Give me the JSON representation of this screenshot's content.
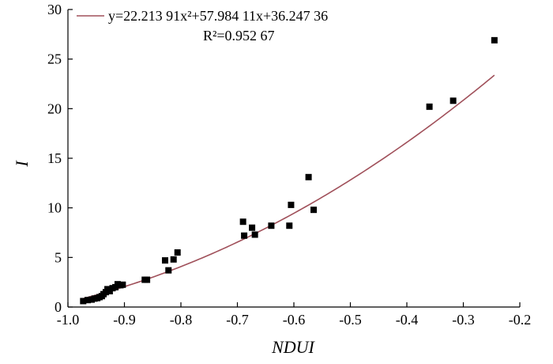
{
  "chart_data": {
    "type": "scatter",
    "xlabel": "NDUI",
    "ylabel": "I",
    "xlim": [
      -1.0,
      -0.2
    ],
    "ylim": [
      0,
      30
    ],
    "xticks": [
      -1.0,
      -0.9,
      -0.8,
      -0.7,
      -0.6,
      -0.5,
      -0.4,
      -0.3,
      -0.2
    ],
    "xtick_labels": [
      "-1.0",
      "-0.9",
      "-0.8",
      "-0.7",
      "-0.6",
      "-0.5",
      "-0.4",
      "-0.3",
      "-0.2"
    ],
    "yticks": [
      0,
      5,
      10,
      15,
      20,
      25,
      30
    ],
    "ytick_labels": [
      "0",
      "5",
      "10",
      "15",
      "20",
      "25",
      "30"
    ],
    "grid": false,
    "legend_position": "top-left",
    "equation_label": "y=22.213 91x²+57.984 11x+36.247 36",
    "r2_label": "R²=0.952 67",
    "colors": {
      "points": "#000000",
      "fit_line": "#a0505a",
      "axes": "#000000"
    },
    "points": [
      {
        "x": -0.973,
        "y": 0.6
      },
      {
        "x": -0.965,
        "y": 0.7
      },
      {
        "x": -0.958,
        "y": 0.75
      },
      {
        "x": -0.953,
        "y": 0.85
      },
      {
        "x": -0.948,
        "y": 0.9
      },
      {
        "x": -0.944,
        "y": 1.0
      },
      {
        "x": -0.94,
        "y": 1.1
      },
      {
        "x": -0.937,
        "y": 1.3
      },
      {
        "x": -0.933,
        "y": 1.5
      },
      {
        "x": -0.93,
        "y": 1.8
      },
      {
        "x": -0.926,
        "y": 1.6
      },
      {
        "x": -0.921,
        "y": 1.9
      },
      {
        "x": -0.916,
        "y": 2.0
      },
      {
        "x": -0.912,
        "y": 2.3
      },
      {
        "x": -0.907,
        "y": 2.2
      },
      {
        "x": -0.903,
        "y": 2.25
      },
      {
        "x": -0.864,
        "y": 2.75
      },
      {
        "x": -0.86,
        "y": 2.75
      },
      {
        "x": -0.828,
        "y": 4.7
      },
      {
        "x": -0.822,
        "y": 3.7
      },
      {
        "x": -0.813,
        "y": 4.8
      },
      {
        "x": -0.806,
        "y": 5.5
      },
      {
        "x": -0.69,
        "y": 8.6
      },
      {
        "x": -0.688,
        "y": 7.2
      },
      {
        "x": -0.674,
        "y": 8.0
      },
      {
        "x": -0.669,
        "y": 7.3
      },
      {
        "x": -0.64,
        "y": 8.2
      },
      {
        "x": -0.608,
        "y": 8.2
      },
      {
        "x": -0.605,
        "y": 10.3
      },
      {
        "x": -0.574,
        "y": 13.1
      },
      {
        "x": -0.565,
        "y": 9.8
      },
      {
        "x": -0.36,
        "y": 20.2
      },
      {
        "x": -0.318,
        "y": 20.8
      },
      {
        "x": -0.245,
        "y": 26.9
      }
    ],
    "fit": {
      "a": 22.21391,
      "b": 57.98411,
      "c": 36.24736,
      "x_range": [
        -0.975,
        -0.245
      ]
    }
  }
}
